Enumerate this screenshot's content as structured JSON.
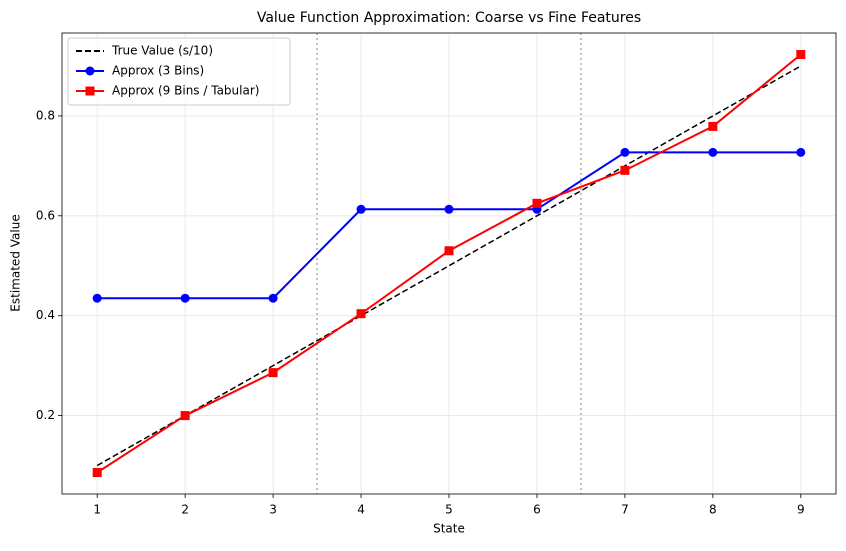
{
  "chart_data": {
    "type": "line",
    "title": "Value Function Approximation: Coarse vs Fine Features",
    "x_label": "State",
    "y_label": "Estimated Value",
    "x": [
      1,
      2,
      3,
      4,
      5,
      6,
      7,
      8,
      9
    ],
    "series": [
      {
        "name": "True Value (s/10)",
        "color": "#000000",
        "linestyle": "dashed",
        "marker": "none",
        "values": [
          0.1,
          0.2,
          0.3,
          0.4,
          0.5,
          0.6,
          0.7,
          0.8,
          0.9
        ]
      },
      {
        "name": "Approx (3 Bins)",
        "color": "#0000ff",
        "linestyle": "solid",
        "marker": "circle",
        "values": [
          0.435,
          0.435,
          0.435,
          0.613,
          0.613,
          0.613,
          0.727,
          0.727,
          0.727
        ]
      },
      {
        "name": "Approx (9 Bins / Tabular)",
        "color": "#ff0000",
        "linestyle": "solid",
        "marker": "square",
        "values": [
          0.086,
          0.2,
          0.286,
          0.404,
          0.53,
          0.625,
          0.691,
          0.779,
          0.923
        ]
      }
    ],
    "vlines": [
      3.5,
      6.5
    ],
    "xlim": [
      0.6,
      9.4
    ],
    "xticks": [
      1,
      2,
      3,
      4,
      5,
      6,
      7,
      8,
      9
    ],
    "ylim": [
      0.043,
      0.966
    ],
    "yticks": [
      0.2,
      0.4,
      0.6,
      0.8
    ],
    "grid": true,
    "legend": "upper-left"
  }
}
